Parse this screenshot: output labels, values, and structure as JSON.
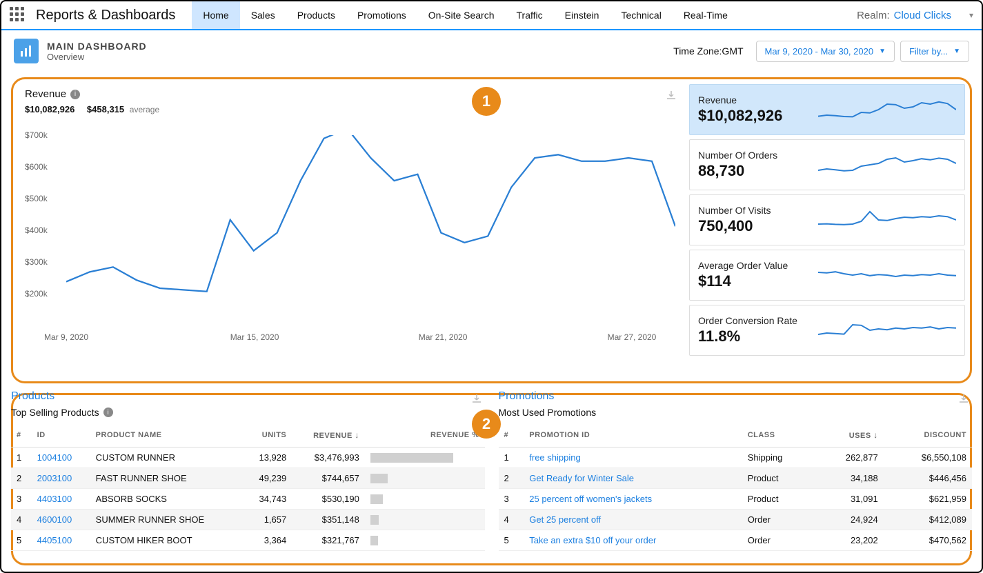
{
  "nav": {
    "brand": "Reports & Dashboards",
    "tabs": [
      "Home",
      "Sales",
      "Products",
      "Promotions",
      "On-Site Search",
      "Traffic",
      "Einstein",
      "Technical",
      "Real-Time"
    ],
    "active_tab": 0,
    "realm_label": "Realm:",
    "realm_value": "Cloud Clicks"
  },
  "header": {
    "title": "MAIN DASHBOARD",
    "subtitle": "Overview",
    "timezone": "Time Zone:GMT",
    "daterange": "Mar 9, 2020 - Mar 30, 2020",
    "filter": "Filter by..."
  },
  "chart": {
    "title": "Revenue",
    "total": "$10,082,926",
    "average": "$458,315",
    "average_label": "average",
    "yticks": [
      "$700k",
      "$600k",
      "$500k",
      "$400k",
      "$300k",
      "$200k"
    ],
    "ylim": [
      200,
      700
    ],
    "xticks": [
      "Mar 9, 2020",
      "Mar 15, 2020",
      "Mar 21, 2020",
      "Mar 27, 2020"
    ],
    "xtick_pos": [
      0,
      0.333,
      0.666,
      1.0
    ],
    "values": [
      250,
      280,
      295,
      255,
      230,
      225,
      220,
      440,
      345,
      400,
      560,
      690,
      720,
      630,
      560,
      580,
      400,
      370,
      390,
      540,
      630,
      640,
      620,
      620,
      630,
      620,
      420
    ],
    "line_color": "#2a7fd4",
    "line_width": 2.2,
    "background": "#ffffff"
  },
  "kpis": [
    {
      "label": "Revenue",
      "value": "$10,082,926",
      "active": true,
      "spark": [
        26,
        30,
        28,
        25,
        24,
        40,
        38,
        50,
        70,
        68,
        55,
        60,
        75,
        70,
        78,
        72,
        50
      ]
    },
    {
      "label": "Number Of Orders",
      "value": "88,730",
      "active": false,
      "spark": [
        30,
        35,
        32,
        28,
        30,
        45,
        50,
        55,
        70,
        75,
        60,
        65,
        72,
        68,
        74,
        70,
        55
      ]
    },
    {
      "label": "Number Of Visits",
      "value": "750,400",
      "active": false,
      "spark": [
        35,
        36,
        34,
        33,
        35,
        45,
        80,
        50,
        48,
        55,
        60,
        58,
        62,
        60,
        65,
        62,
        50
      ]
    },
    {
      "label": "Average Order Value",
      "value": "$114",
      "active": false,
      "spark": [
        60,
        58,
        62,
        55,
        50,
        55,
        48,
        52,
        50,
        45,
        50,
        48,
        52,
        50,
        55,
        50,
        48
      ]
    },
    {
      "label": "Order Conversion Rate",
      "value": "11.8%",
      "active": false,
      "spark": [
        35,
        40,
        38,
        36,
        70,
        68,
        50,
        55,
        52,
        58,
        55,
        60,
        58,
        62,
        55,
        60,
        58
      ]
    }
  ],
  "products": {
    "heading": "Products",
    "subheading": "Top Selling Products",
    "columns": [
      "#",
      "ID",
      "PRODUCT NAME",
      "UNITS",
      "REVENUE",
      "REVENUE %"
    ],
    "sort_col": 4,
    "rows": [
      {
        "n": "1",
        "id": "1004100",
        "name": "CUSTOM RUNNER",
        "units": "13,928",
        "rev": "$3,476,993",
        "pct": 100
      },
      {
        "n": "2",
        "id": "2003100",
        "name": "FAST RUNNER SHOE",
        "units": "49,239",
        "rev": "$744,657",
        "pct": 21
      },
      {
        "n": "3",
        "id": "4403100",
        "name": "ABSORB SOCKS",
        "units": "34,743",
        "rev": "$530,190",
        "pct": 15
      },
      {
        "n": "4",
        "id": "4600100",
        "name": "SUMMER RUNNER SHOE",
        "units": "1,657",
        "rev": "$351,148",
        "pct": 10
      },
      {
        "n": "5",
        "id": "4405100",
        "name": "CUSTOM HIKER BOOT",
        "units": "3,364",
        "rev": "$321,767",
        "pct": 9
      }
    ]
  },
  "promotions": {
    "heading": "Promotions",
    "subheading": "Most Used Promotions",
    "columns": [
      "#",
      "PROMOTION ID",
      "CLASS",
      "USES",
      "DISCOUNT"
    ],
    "sort_col": 3,
    "rows": [
      {
        "n": "1",
        "id": "free shipping",
        "class": "Shipping",
        "uses": "262,877",
        "disc": "$6,550,108"
      },
      {
        "n": "2",
        "id": "Get Ready for Winter Sale",
        "class": "Product",
        "uses": "34,188",
        "disc": "$446,456"
      },
      {
        "n": "3",
        "id": "25 percent off women's jackets",
        "class": "Product",
        "uses": "31,091",
        "disc": "$621,959"
      },
      {
        "n": "4",
        "id": "Get 25 percent off",
        "class": "Order",
        "uses": "24,924",
        "disc": "$412,089"
      },
      {
        "n": "5",
        "id": "Take an extra $10 off your order",
        "class": "Order",
        "uses": "23,202",
        "disc": "$470,562"
      }
    ]
  },
  "callouts": {
    "badge1": "1",
    "badge2": "2"
  },
  "colors": {
    "accent": "#1b7fe0",
    "orange": "#e88a1a",
    "spark": "#2a7fd4"
  }
}
